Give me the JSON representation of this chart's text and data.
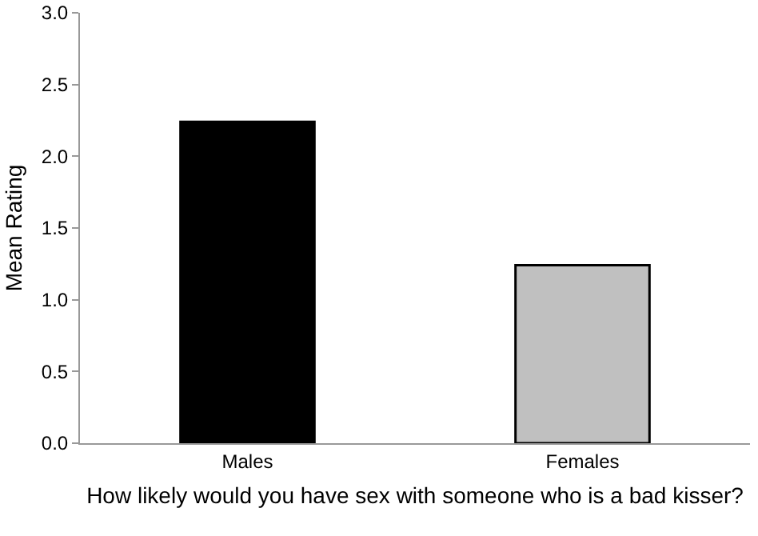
{
  "chart_data": {
    "type": "bar",
    "categories": [
      "Males",
      "Females"
    ],
    "values": [
      2.24,
      1.24
    ],
    "colors": [
      "#000000",
      "#c0c0c0"
    ],
    "xlabel": "How likely would you have sex with someone who is a bad kisser?",
    "ylabel": "Mean Rating",
    "ylim": [
      0,
      3
    ],
    "yticks": [
      {
        "value": 0,
        "label": "0.0"
      },
      {
        "value": 0.5,
        "label": "0.5"
      },
      {
        "value": 1,
        "label": "1.0"
      },
      {
        "value": 1.5,
        "label": "1.5"
      },
      {
        "value": 2,
        "label": "2.0"
      },
      {
        "value": 2.5,
        "label": "2.5"
      },
      {
        "value": 3,
        "label": "3.0"
      }
    ],
    "grid": false
  }
}
